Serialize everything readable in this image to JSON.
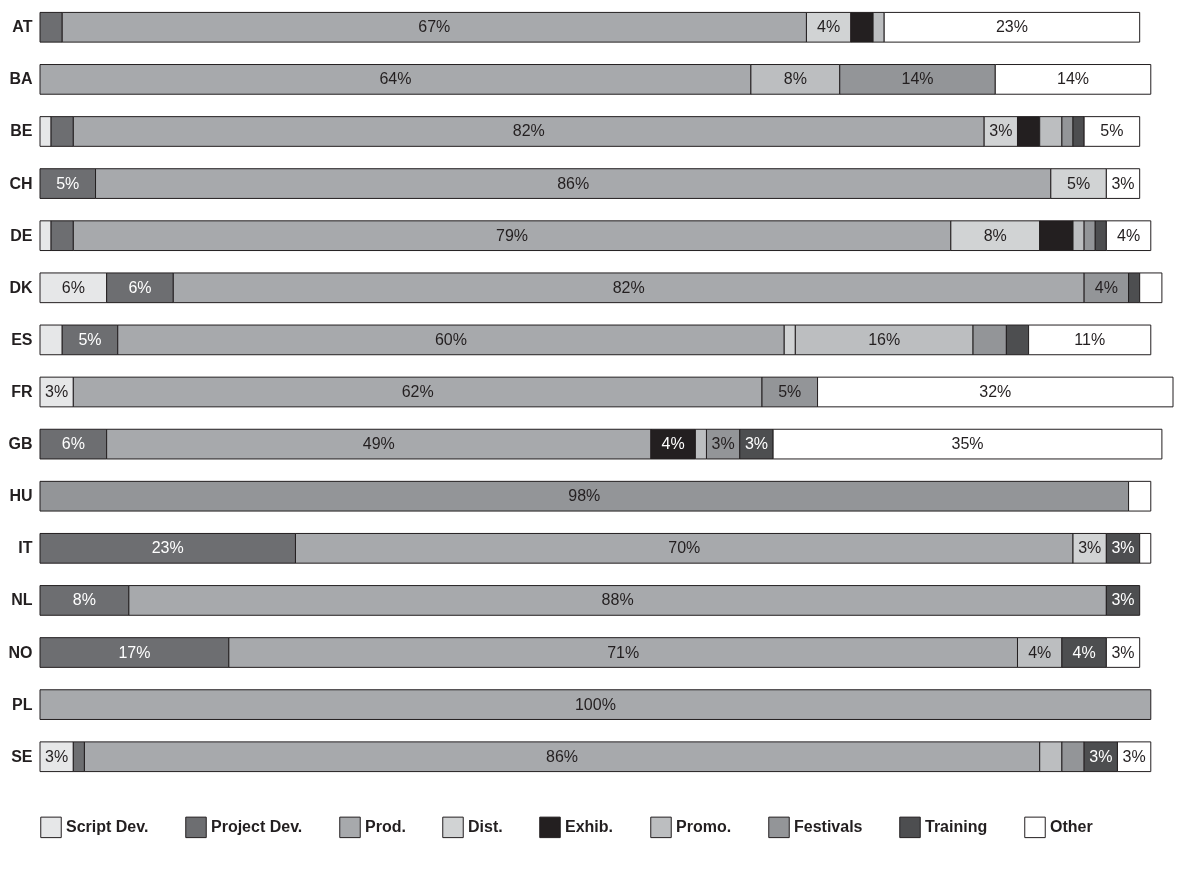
{
  "chart_data": {
    "type": "bar",
    "orientation": "horizontal",
    "stacked": true,
    "legend": "bottom",
    "categories": [
      "AT",
      "BA",
      "BE",
      "CH",
      "DE",
      "DK",
      "ES",
      "FR",
      "GB",
      "HU",
      "IT",
      "NL",
      "NO",
      "PL",
      "SE"
    ],
    "series": [
      {
        "name": "Script Dev.",
        "color": "#e6e7e8",
        "values": [
          null,
          null,
          1,
          null,
          1,
          6,
          2,
          3,
          null,
          null,
          null,
          null,
          null,
          null,
          3
        ],
        "value_labels": [
          null,
          null,
          null,
          null,
          null,
          "6%",
          null,
          "3%",
          null,
          null,
          null,
          null,
          null,
          null,
          "3%"
        ]
      },
      {
        "name": "Project Dev.",
        "color": "#6d6e71",
        "values": [
          2,
          null,
          2,
          5,
          2,
          6,
          5,
          null,
          6,
          null,
          23,
          8,
          17,
          null,
          1
        ],
        "value_labels": [
          null,
          null,
          null,
          "5%",
          null,
          "6%",
          "5%",
          null,
          "6%",
          null,
          "23%",
          "8%",
          "17%",
          null,
          null
        ]
      },
      {
        "name": "Prod.",
        "color": "#a7a9ac",
        "values": [
          67,
          64,
          82,
          86,
          79,
          82,
          60,
          62,
          49,
          null,
          70,
          88,
          71,
          100,
          86
        ],
        "value_labels": [
          "67%",
          "64%",
          "82%",
          "86%",
          "79%",
          "82%",
          "60%",
          "62%",
          "49%",
          null,
          "70%",
          "88%",
          "71%",
          "100%",
          "86%"
        ]
      },
      {
        "name": "Dist.",
        "color": "#d1d3d4",
        "values": [
          4,
          null,
          3,
          5,
          8,
          null,
          1,
          null,
          null,
          null,
          3,
          null,
          null,
          null,
          null
        ],
        "value_labels": [
          "4%",
          null,
          "3%",
          "5%",
          "8%",
          null,
          null,
          null,
          null,
          null,
          "3%",
          null,
          null,
          null,
          null
        ]
      },
      {
        "name": "Exhib.",
        "color": "#231f20",
        "values": [
          2,
          null,
          2,
          null,
          3,
          null,
          null,
          null,
          4,
          null,
          null,
          null,
          null,
          null,
          null
        ],
        "value_labels": [
          null,
          null,
          null,
          null,
          null,
          null,
          null,
          null,
          "4%",
          null,
          null,
          null,
          null,
          null,
          null
        ]
      },
      {
        "name": "Promo.",
        "color": "#bcbec0",
        "values": [
          1,
          8,
          2,
          null,
          1,
          null,
          16,
          null,
          1,
          null,
          null,
          null,
          4,
          null,
          2
        ],
        "value_labels": [
          null,
          "8%",
          null,
          null,
          null,
          null,
          "16%",
          null,
          null,
          null,
          null,
          null,
          "4%",
          null,
          null
        ]
      },
      {
        "name": "Festivals",
        "color": "#939598",
        "values": [
          null,
          14,
          1,
          null,
          1,
          4,
          3,
          5,
          3,
          98,
          null,
          null,
          null,
          null,
          2
        ],
        "value_labels": [
          null,
          "14%",
          null,
          null,
          null,
          "4%",
          null,
          "5%",
          "3%",
          "98%",
          null,
          null,
          null,
          null,
          null
        ]
      },
      {
        "name": "Training",
        "color": "#4d4e50",
        "values": [
          null,
          null,
          1,
          null,
          1,
          1,
          2,
          null,
          3,
          null,
          3,
          3,
          4,
          null,
          3
        ],
        "value_labels": [
          null,
          null,
          null,
          null,
          null,
          null,
          null,
          null,
          "3%",
          null,
          "3%",
          "3%",
          "4%",
          null,
          "3%"
        ]
      },
      {
        "name": "Other",
        "color": "#ffffff",
        "values": [
          23,
          14,
          5,
          3,
          4,
          2,
          11,
          32,
          35,
          2,
          1,
          null,
          3,
          null,
          3
        ],
        "value_labels": [
          "23%",
          "14%",
          "5%",
          "3%",
          "4%",
          null,
          "11%",
          "32%",
          "35%",
          null,
          null,
          null,
          "3%",
          null,
          "3%"
        ]
      }
    ]
  }
}
